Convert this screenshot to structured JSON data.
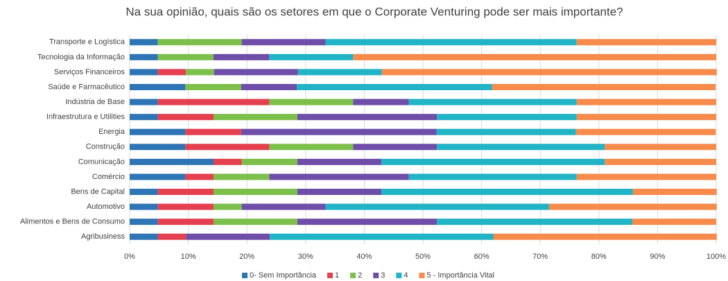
{
  "chart_data": {
    "type": "stacked-bar-horizontal",
    "title": "Na sua opinião, quais são os setores em que o Corporate Venturing pode ser mais importante?",
    "categories": [
      "Transporte e Logística",
      "Tecnologia da Informação",
      "Serviços Financeiros",
      "Saúde e Farmacêutico",
      "Indústria de Base",
      "Infraestrutura e Utilities",
      "Energia",
      "Construção",
      "Comunicação",
      "Comércio",
      "Bens de Capital",
      "Automotivo",
      "Alimentos e Bens de Consumo",
      "Agribusiness"
    ],
    "series": [
      {
        "name": "0- Sem Importância",
        "color": "#2e75b6",
        "values": [
          4.8,
          4.8,
          4.8,
          9.5,
          4.8,
          4.8,
          9.5,
          9.5,
          14.3,
          9.5,
          4.8,
          4.8,
          4.8,
          4.8
        ]
      },
      {
        "name": "1",
        "color": "#e5404f",
        "values": [
          0,
          0,
          4.8,
          0,
          19.0,
          9.5,
          9.5,
          14.3,
          4.8,
          4.8,
          9.5,
          9.5,
          9.5,
          4.8
        ]
      },
      {
        "name": "2",
        "color": "#7cbf4a",
        "values": [
          14.3,
          9.5,
          4.8,
          9.5,
          14.3,
          14.3,
          0,
          14.3,
          9.5,
          9.5,
          14.3,
          4.8,
          14.3,
          0
        ]
      },
      {
        "name": "3",
        "color": "#6e4ea8",
        "values": [
          14.3,
          9.5,
          14.3,
          9.5,
          9.5,
          23.8,
          33.3,
          14.3,
          14.3,
          23.8,
          14.3,
          14.3,
          23.8,
          14.3
        ]
      },
      {
        "name": "4",
        "color": "#21b3c6",
        "values": [
          42.8,
          14.3,
          14.3,
          33.3,
          28.6,
          23.8,
          23.8,
          28.6,
          38.1,
          28.6,
          42.9,
          38.1,
          33.3,
          38.1
        ]
      },
      {
        "name": "5 - Importância Vital",
        "color": "#f68b4c",
        "values": [
          23.8,
          61.9,
          57.1,
          38.1,
          23.8,
          23.8,
          23.8,
          19.0,
          19.0,
          23.8,
          14.3,
          28.6,
          14.3,
          38.1
        ]
      }
    ],
    "xlim": [
      0,
      100
    ],
    "xticks": [
      {
        "value": 0,
        "label": "0%"
      },
      {
        "value": 10,
        "label": "10%"
      },
      {
        "value": 20,
        "label": "20%"
      },
      {
        "value": 30,
        "label": "30%"
      },
      {
        "value": 40,
        "label": "40%"
      },
      {
        "value": 50,
        "label": "50%"
      },
      {
        "value": 60,
        "label": "60%"
      },
      {
        "value": 70,
        "label": "70%"
      },
      {
        "value": 80,
        "label": "80%"
      },
      {
        "value": 90,
        "label": "90%"
      },
      {
        "value": 100,
        "label": "100%"
      }
    ],
    "grid": true,
    "legend": "bottom"
  }
}
